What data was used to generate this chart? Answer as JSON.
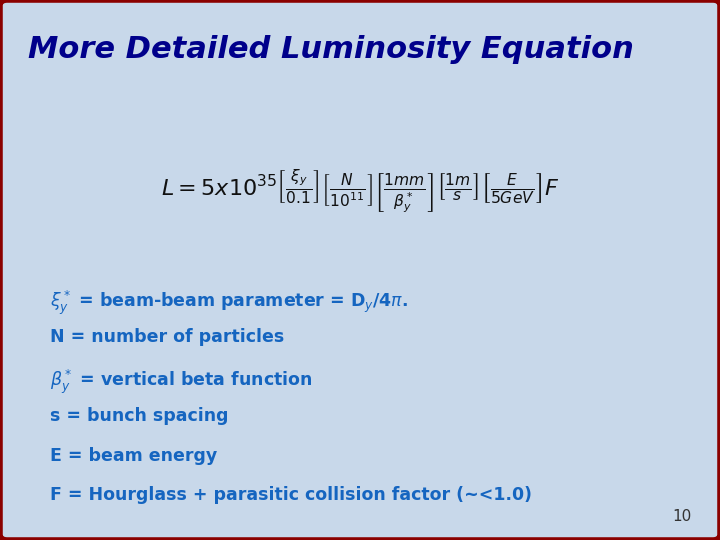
{
  "title": "More Detailed Luminosity Equation",
  "title_color": "#00008B",
  "title_fontsize": 22,
  "slide_bg": "#B0C4DE",
  "border_color": "#8B0000",
  "inner_bg": "#C8D8EA",
  "bullet_color": "#1565C0",
  "bullets": [
    "$\\xi_y^*$ = beam-beam parameter = D$_y$/4$\\pi$.",
    "N = number of particles",
    "$\\beta_y^*$ = vertical beta function",
    "s = bunch spacing",
    "E = beam energy",
    "F = Hourglass + parasitic collision factor (~<1.0)"
  ],
  "page_number": "10"
}
